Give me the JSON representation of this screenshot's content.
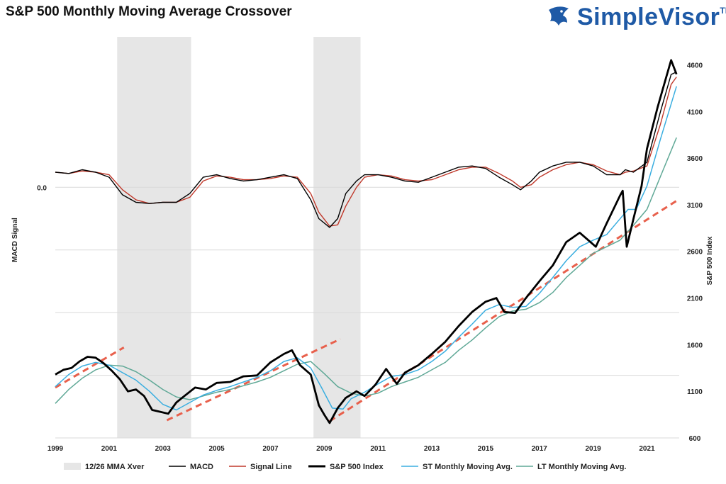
{
  "header": {
    "title": "S&P 500 Monthly Moving Average Crossover"
  },
  "brand": {
    "name": "SimpleVisor",
    "tm": "TM",
    "color": "#1f5aa6"
  },
  "chart_data": {
    "type": "line",
    "title": "S&P 500 Monthly Moving Average Crossover",
    "xlabel": "",
    "ylabel_left": "MACD Signal",
    "ylabel_right": "S&P 500 Index",
    "x_ticks": [
      "1999",
      "2001",
      "2003",
      "2005",
      "2007",
      "2009",
      "2011",
      "2013",
      "2015",
      "2017",
      "2019",
      "2021"
    ],
    "xlim": [
      1999.0,
      2022.2
    ],
    "left_axis": {
      "ticks": [
        "0.0"
      ],
      "tick_values": [
        0.0
      ],
      "ylim": [
        -2.0,
        1.2
      ]
    },
    "right_axis": {
      "ticks": [
        "600",
        "1100",
        "1600",
        "2100",
        "2600",
        "3100",
        "3600",
        "4100",
        "4600"
      ],
      "ylim": [
        600,
        4900
      ]
    },
    "grid": true,
    "legend_position": "bottom",
    "colors": {
      "shade": "#e6e6e6",
      "macd": "#000000",
      "signal": "#c0392b",
      "spx": "#000000",
      "st_ma": "#3aaee0",
      "lt_ma": "#5fa896",
      "trend": "#e8604c"
    },
    "shaded_periods": [
      [
        2001.3,
        2004.05
      ],
      [
        2008.6,
        2010.35
      ]
    ],
    "series": [
      {
        "name": "MACD",
        "axis": "left",
        "x": [
          1999.0,
          1999.5,
          2000.0,
          2000.5,
          2001.0,
          2001.5,
          2002.0,
          2002.5,
          2003.0,
          2003.5,
          2004.0,
          2004.5,
          2005.0,
          2005.5,
          2006.0,
          2006.5,
          2007.0,
          2007.5,
          2008.0,
          2008.5,
          2008.8,
          2009.2,
          2009.5,
          2009.8,
          2010.2,
          2010.5,
          2011.0,
          2011.5,
          2012.0,
          2012.5,
          2013.0,
          2013.5,
          2014.0,
          2014.5,
          2015.0,
          2015.5,
          2016.0,
          2016.3,
          2016.7,
          2017.0,
          2017.5,
          2018.0,
          2018.5,
          2019.0,
          2019.5,
          2020.0,
          2020.2,
          2020.5,
          2021.0,
          2021.5,
          2021.9,
          2022.1
        ],
        "values": [
          0.12,
          0.11,
          0.14,
          0.12,
          0.08,
          -0.06,
          -0.12,
          -0.13,
          -0.12,
          -0.12,
          -0.05,
          0.08,
          0.1,
          0.07,
          0.05,
          0.06,
          0.08,
          0.1,
          0.07,
          -0.1,
          -0.25,
          -0.32,
          -0.25,
          -0.05,
          0.05,
          0.1,
          0.1,
          0.08,
          0.05,
          0.04,
          0.08,
          0.12,
          0.16,
          0.17,
          0.15,
          0.08,
          0.02,
          -0.02,
          0.05,
          0.12,
          0.17,
          0.2,
          0.2,
          0.17,
          0.1,
          0.1,
          0.14,
          0.12,
          0.2,
          0.6,
          0.9,
          0.92
        ]
      },
      {
        "name": "Signal Line",
        "axis": "left",
        "x": [
          1999.0,
          1999.5,
          2000.0,
          2000.5,
          2001.0,
          2001.5,
          2002.0,
          2002.5,
          2003.0,
          2003.5,
          2004.0,
          2004.5,
          2005.0,
          2005.5,
          2006.0,
          2006.5,
          2007.0,
          2007.5,
          2008.0,
          2008.5,
          2008.8,
          2009.2,
          2009.5,
          2009.8,
          2010.2,
          2010.5,
          2011.0,
          2011.5,
          2012.0,
          2012.5,
          2013.0,
          2013.5,
          2014.0,
          2014.5,
          2015.0,
          2015.5,
          2016.0,
          2016.3,
          2016.7,
          2017.0,
          2017.5,
          2018.0,
          2018.5,
          2019.0,
          2019.5,
          2020.0,
          2020.2,
          2020.5,
          2021.0,
          2021.5,
          2021.9,
          2022.1
        ],
        "values": [
          0.12,
          0.11,
          0.13,
          0.12,
          0.1,
          -0.02,
          -0.1,
          -0.13,
          -0.12,
          -0.12,
          -0.08,
          0.05,
          0.09,
          0.08,
          0.06,
          0.06,
          0.07,
          0.09,
          0.08,
          -0.05,
          -0.2,
          -0.31,
          -0.3,
          -0.15,
          0.0,
          0.08,
          0.1,
          0.09,
          0.06,
          0.05,
          0.06,
          0.1,
          0.14,
          0.16,
          0.16,
          0.11,
          0.05,
          0.0,
          0.02,
          0.08,
          0.14,
          0.18,
          0.2,
          0.18,
          0.13,
          0.1,
          0.12,
          0.13,
          0.17,
          0.5,
          0.82,
          0.88
        ]
      },
      {
        "name": "S&P 500 Index",
        "axis": "right",
        "x": [
          1999.0,
          1999.3,
          1999.6,
          1999.9,
          2000.2,
          2000.5,
          2000.8,
          2001.1,
          2001.4,
          2001.7,
          2002.0,
          2002.3,
          2002.6,
          2002.9,
          2003.2,
          2003.5,
          2003.8,
          2004.2,
          2004.6,
          2005.0,
          2005.5,
          2006.0,
          2006.5,
          2007.0,
          2007.5,
          2007.8,
          2008.1,
          2008.5,
          2008.8,
          2009.0,
          2009.2,
          2009.5,
          2009.8,
          2010.2,
          2010.5,
          2010.9,
          2011.3,
          2011.7,
          2012.0,
          2012.5,
          2013.0,
          2013.5,
          2014.0,
          2014.5,
          2015.0,
          2015.4,
          2015.7,
          2016.1,
          2016.5,
          2017.0,
          2017.5,
          2018.0,
          2018.5,
          2018.9,
          2019.1,
          2019.5,
          2020.0,
          2020.1,
          2020.25,
          2020.5,
          2020.8,
          2021.0,
          2021.4,
          2021.7,
          2021.9,
          2022.1
        ],
        "values": [
          1280,
          1330,
          1350,
          1420,
          1470,
          1460,
          1400,
          1320,
          1230,
          1100,
          1120,
          1050,
          900,
          880,
          860,
          980,
          1050,
          1140,
          1120,
          1190,
          1200,
          1260,
          1270,
          1410,
          1500,
          1540,
          1380,
          1280,
          950,
          850,
          760,
          920,
          1030,
          1100,
          1050,
          1170,
          1340,
          1180,
          1300,
          1380,
          1500,
          1630,
          1800,
          1950,
          2060,
          2100,
          1950,
          1940,
          2100,
          2280,
          2450,
          2700,
          2800,
          2700,
          2650,
          2900,
          3200,
          3250,
          2650,
          2950,
          3300,
          3700,
          4150,
          4450,
          4650,
          4500
        ]
      },
      {
        "name": "ST Monthly Moving Avg.",
        "axis": "right",
        "x": [
          1999.0,
          1999.5,
          2000.0,
          2000.5,
          2001.0,
          2001.5,
          2002.0,
          2002.5,
          2003.0,
          2003.5,
          2004.0,
          2004.5,
          2005.0,
          2005.5,
          2006.0,
          2006.5,
          2007.0,
          2007.5,
          2008.0,
          2008.5,
          2008.9,
          2009.3,
          2009.7,
          2010.0,
          2010.5,
          2011.0,
          2011.5,
          2012.0,
          2012.5,
          2013.0,
          2013.5,
          2014.0,
          2014.5,
          2015.0,
          2015.5,
          2016.0,
          2016.5,
          2017.0,
          2017.5,
          2018.0,
          2018.5,
          2019.0,
          2019.5,
          2020.0,
          2020.3,
          2020.6,
          2021.0,
          2021.5,
          2022.1
        ],
        "values": [
          1150,
          1280,
          1370,
          1410,
          1380,
          1300,
          1220,
          1100,
          960,
          900,
          980,
          1060,
          1110,
          1150,
          1200,
          1250,
          1320,
          1420,
          1460,
          1350,
          1140,
          920,
          910,
          1020,
          1090,
          1180,
          1260,
          1280,
          1330,
          1420,
          1530,
          1680,
          1820,
          1970,
          2030,
          2000,
          2010,
          2150,
          2320,
          2500,
          2650,
          2720,
          2780,
          2950,
          3050,
          3050,
          3300,
          3800,
          4370
        ]
      },
      {
        "name": "LT Monthly Moving Avg.",
        "axis": "right",
        "x": [
          1999.0,
          1999.5,
          2000.0,
          2000.5,
          2001.0,
          2001.5,
          2002.0,
          2002.5,
          2003.0,
          2003.5,
          2004.0,
          2004.5,
          2005.0,
          2005.5,
          2006.0,
          2006.5,
          2007.0,
          2007.5,
          2008.0,
          2008.5,
          2009.0,
          2009.5,
          2010.0,
          2010.5,
          2011.0,
          2011.5,
          2012.0,
          2012.5,
          2013.0,
          2013.5,
          2014.0,
          2014.5,
          2015.0,
          2015.5,
          2016.0,
          2016.5,
          2017.0,
          2017.5,
          2018.0,
          2018.5,
          2019.0,
          2019.5,
          2020.0,
          2020.5,
          2021.0,
          2021.5,
          2022.1
        ],
        "values": [
          970,
          1120,
          1240,
          1330,
          1380,
          1370,
          1310,
          1220,
          1120,
          1040,
          1010,
          1050,
          1090,
          1120,
          1160,
          1200,
          1250,
          1320,
          1390,
          1420,
          1290,
          1150,
          1080,
          1050,
          1080,
          1150,
          1200,
          1250,
          1330,
          1410,
          1540,
          1650,
          1780,
          1900,
          1960,
          1980,
          2050,
          2160,
          2320,
          2450,
          2580,
          2650,
          2720,
          2880,
          3050,
          3400,
          3820
        ]
      }
    ],
    "trend_lines": [
      {
        "name": "trend-1999-2001",
        "x": [
          1999.0,
          2001.55
        ],
        "values": [
          1140,
          1570
        ]
      },
      {
        "name": "trend-2003-2009",
        "x": [
          2003.15,
          2009.6
        ],
        "values": [
          790,
          1660
        ]
      },
      {
        "name": "trend-2009-2022",
        "x": [
          2009.2,
          2022.2
        ],
        "values": [
          780,
          3160
        ]
      }
    ],
    "legend": [
      {
        "label": "12/26 MMA Xver",
        "kind": "shade"
      },
      {
        "label": "MACD",
        "kind": "macd"
      },
      {
        "label": "Signal Line",
        "kind": "signal"
      },
      {
        "label": "S&P 500 Index",
        "kind": "spx"
      },
      {
        "label": "ST Monthly Moving Avg.",
        "kind": "st_ma"
      },
      {
        "label": "LT Monthly Moving Avg.",
        "kind": "lt_ma"
      }
    ]
  }
}
